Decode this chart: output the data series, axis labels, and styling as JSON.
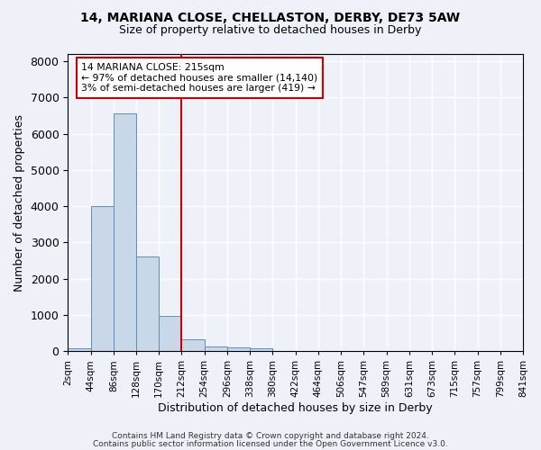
{
  "title1": "14, MARIANA CLOSE, CHELLASTON, DERBY, DE73 5AW",
  "title2": "Size of property relative to detached houses in Derby",
  "xlabel": "Distribution of detached houses by size in Derby",
  "ylabel": "Number of detached properties",
  "bin_labels": [
    "2sqm",
    "44sqm",
    "86sqm",
    "128sqm",
    "170sqm",
    "212sqm",
    "254sqm",
    "296sqm",
    "338sqm",
    "380sqm",
    "422sqm",
    "464sqm",
    "506sqm",
    "547sqm",
    "589sqm",
    "631sqm",
    "673sqm",
    "715sqm",
    "757sqm",
    "799sqm",
    "841sqm"
  ],
  "bar_heights": [
    75,
    4000,
    6550,
    2620,
    975,
    320,
    120,
    95,
    90,
    0,
    0,
    0,
    0,
    0,
    0,
    0,
    0,
    0,
    0,
    0
  ],
  "bar_color": "#c8d8e8",
  "bar_edge_color": "#5a8fc0",
  "vline_x": 5,
  "vline_color": "#cc0000",
  "annotation_text": "14 MARIANA CLOSE: 215sqm\n← 97% of detached houses are smaller (14,140)\n3% of semi-detached houses are larger (419) →",
  "annotation_box_color": "white",
  "annotation_box_edge_color": "#cc0000",
  "ylim": [
    0,
    8200
  ],
  "yticks": [
    0,
    1000,
    2000,
    3000,
    4000,
    5000,
    6000,
    7000,
    8000
  ],
  "footer1": "Contains HM Land Registry data © Crown copyright and database right 2024.",
  "footer2": "Contains public sector information licensed under the Open Government Licence v3.0.",
  "bg_color": "#eef2f8",
  "grid_color": "white"
}
